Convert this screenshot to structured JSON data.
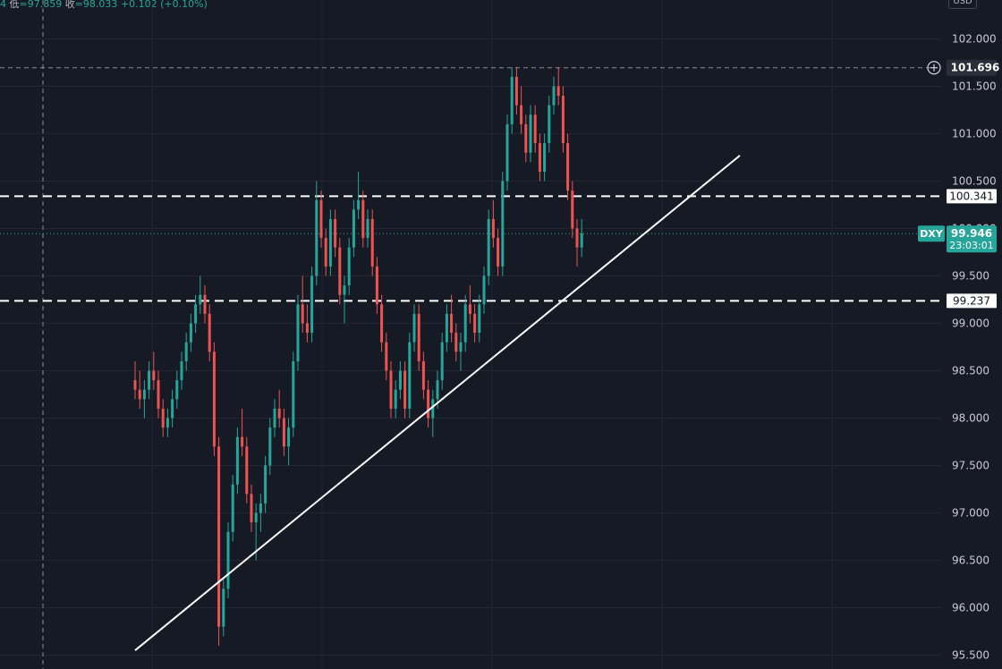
{
  "header": {
    "partial_prefix": "4",
    "low_label": "低",
    "low_value": "=97.859",
    "close_label": "收",
    "close_value": "=98.033",
    "change": "+0.102 (+0.10%)"
  },
  "currency": "USD",
  "colors": {
    "background": "#161a25",
    "up": "#26a69a",
    "down": "#ef5350",
    "grid": "#232632",
    "line": "#ffffff",
    "price_tag": "#26a69a"
  },
  "chart_data": {
    "type": "candlestick",
    "symbol": "DXY",
    "current_price": "99.946",
    "countdown": "23:03:01",
    "ylim": [
      95.45,
      102.3
    ],
    "y_ticks": [
      "95.500",
      "96.000",
      "96.500",
      "97.000",
      "97.500",
      "98.000",
      "98.500",
      "99.000",
      "99.500",
      "100.000",
      "100.500",
      "101.000",
      "101.500",
      "102.000"
    ],
    "horizontal_levels": [
      {
        "value": "100.341",
        "style": "dashed"
      },
      {
        "value": "99.237",
        "style": "dashed"
      }
    ],
    "crosshair_price": "101.696",
    "trendline": {
      "from_bar": 0,
      "from_price": 95.55,
      "to_bar": 130,
      "to_price": 100.77
    },
    "bars": [
      [
        98.4,
        98.6,
        98.2,
        98.3
      ],
      [
        98.3,
        98.5,
        98.1,
        98.2
      ],
      [
        98.2,
        98.4,
        98.0,
        98.3
      ],
      [
        98.3,
        98.6,
        98.2,
        98.5
      ],
      [
        98.5,
        98.7,
        98.3,
        98.4
      ],
      [
        98.4,
        98.5,
        98.0,
        98.1
      ],
      [
        98.1,
        98.2,
        97.8,
        97.9
      ],
      [
        97.9,
        98.1,
        97.8,
        98.0
      ],
      [
        98.0,
        98.3,
        97.9,
        98.2
      ],
      [
        98.2,
        98.5,
        98.1,
        98.4
      ],
      [
        98.4,
        98.7,
        98.3,
        98.6
      ],
      [
        98.6,
        98.9,
        98.5,
        98.8
      ],
      [
        98.8,
        99.1,
        98.7,
        99.0
      ],
      [
        99.0,
        99.3,
        98.9,
        99.2
      ],
      [
        99.2,
        99.5,
        99.1,
        99.3
      ],
      [
        99.3,
        99.4,
        99.0,
        99.1
      ],
      [
        99.1,
        99.2,
        98.6,
        98.7
      ],
      [
        98.7,
        98.8,
        97.6,
        97.7
      ],
      [
        97.7,
        97.8,
        95.6,
        95.8
      ],
      [
        95.8,
        96.3,
        95.7,
        96.2
      ],
      [
        96.2,
        96.9,
        96.1,
        96.8
      ],
      [
        96.8,
        97.4,
        96.7,
        97.3
      ],
      [
        97.3,
        97.9,
        97.2,
        97.8
      ],
      [
        97.8,
        98.1,
        97.6,
        97.7
      ],
      [
        97.7,
        97.8,
        97.1,
        97.2
      ],
      [
        97.2,
        97.3,
        96.8,
        96.9
      ],
      [
        96.9,
        97.1,
        96.5,
        97.0
      ],
      [
        97.0,
        97.2,
        96.8,
        97.1
      ],
      [
        97.1,
        97.6,
        97.0,
        97.5
      ],
      [
        97.5,
        98.0,
        97.4,
        97.9
      ],
      [
        97.9,
        98.2,
        97.8,
        98.1
      ],
      [
        98.1,
        98.3,
        97.9,
        98.0
      ],
      [
        98.0,
        98.1,
        97.6,
        97.7
      ],
      [
        97.7,
        98.0,
        97.5,
        97.9
      ],
      [
        97.9,
        98.7,
        97.8,
        98.6
      ],
      [
        98.6,
        99.3,
        98.5,
        99.2
      ],
      [
        99.2,
        99.5,
        98.9,
        99.0
      ],
      [
        99.0,
        99.2,
        98.8,
        98.9
      ],
      [
        98.9,
        99.6,
        98.8,
        99.5
      ],
      [
        99.5,
        100.5,
        99.4,
        100.3
      ],
      [
        100.3,
        100.4,
        99.8,
        99.9
      ],
      [
        99.9,
        100.0,
        99.5,
        99.6
      ],
      [
        99.6,
        100.2,
        99.5,
        100.1
      ],
      [
        100.1,
        100.2,
        99.7,
        99.8
      ],
      [
        99.8,
        99.9,
        99.2,
        99.3
      ],
      [
        99.3,
        99.5,
        99.0,
        99.4
      ],
      [
        99.4,
        99.9,
        99.3,
        99.8
      ],
      [
        99.8,
        100.3,
        99.7,
        100.2
      ],
      [
        100.2,
        100.6,
        100.1,
        100.3
      ],
      [
        100.3,
        100.4,
        99.8,
        99.9
      ],
      [
        99.9,
        100.2,
        99.8,
        100.1
      ],
      [
        100.1,
        100.2,
        99.5,
        99.6
      ],
      [
        99.6,
        99.7,
        99.1,
        99.2
      ],
      [
        99.2,
        99.3,
        98.7,
        98.8
      ],
      [
        98.8,
        98.9,
        98.4,
        98.5
      ],
      [
        98.5,
        98.6,
        98.0,
        98.1
      ],
      [
        98.1,
        98.4,
        98.0,
        98.3
      ],
      [
        98.3,
        98.6,
        98.2,
        98.5
      ],
      [
        98.5,
        98.6,
        98.0,
        98.1
      ],
      [
        98.1,
        98.9,
        98.0,
        98.8
      ],
      [
        98.8,
        99.2,
        98.7,
        99.1
      ],
      [
        99.1,
        99.2,
        98.5,
        98.6
      ],
      [
        98.6,
        98.7,
        98.2,
        98.3
      ],
      [
        98.3,
        98.4,
        97.9,
        98.0
      ],
      [
        98.0,
        98.3,
        97.8,
        98.2
      ],
      [
        98.2,
        98.5,
        98.1,
        98.4
      ],
      [
        98.4,
        98.9,
        98.3,
        98.8
      ],
      [
        98.8,
        99.2,
        98.7,
        99.1
      ],
      [
        99.1,
        99.3,
        98.8,
        98.9
      ],
      [
        98.9,
        99.0,
        98.6,
        98.7
      ],
      [
        98.7,
        98.9,
        98.5,
        98.8
      ],
      [
        98.8,
        99.3,
        98.7,
        99.2
      ],
      [
        99.2,
        99.4,
        99.0,
        99.1
      ],
      [
        99.1,
        99.2,
        98.8,
        98.9
      ],
      [
        98.9,
        99.3,
        98.8,
        99.2
      ],
      [
        99.2,
        99.6,
        99.1,
        99.5
      ],
      [
        99.5,
        100.2,
        99.4,
        100.1
      ],
      [
        100.1,
        100.3,
        99.8,
        99.9
      ],
      [
        99.9,
        100.0,
        99.5,
        99.6
      ],
      [
        99.6,
        100.6,
        99.5,
        100.5
      ],
      [
        100.5,
        101.2,
        100.4,
        101.1
      ],
      [
        101.1,
        101.7,
        101.0,
        101.6
      ],
      [
        101.6,
        101.7,
        101.2,
        101.3
      ],
      [
        101.3,
        101.5,
        101.0,
        101.1
      ],
      [
        101.1,
        101.2,
        100.7,
        100.8
      ],
      [
        100.8,
        101.3,
        100.7,
        101.2
      ],
      [
        101.2,
        101.3,
        100.8,
        100.9
      ],
      [
        100.9,
        101.0,
        100.5,
        100.6
      ],
      [
        100.6,
        101.0,
        100.5,
        100.9
      ],
      [
        100.9,
        101.4,
        100.8,
        101.3
      ],
      [
        101.3,
        101.6,
        101.2,
        101.5
      ],
      [
        101.5,
        101.7,
        101.3,
        101.4
      ],
      [
        101.4,
        101.5,
        100.8,
        100.9
      ],
      [
        100.9,
        101.0,
        100.3,
        100.4
      ],
      [
        100.4,
        100.5,
        99.9,
        100.0
      ],
      [
        100.0,
        100.1,
        99.6,
        99.8
      ],
      [
        99.8,
        100.1,
        99.7,
        99.95
      ]
    ]
  }
}
